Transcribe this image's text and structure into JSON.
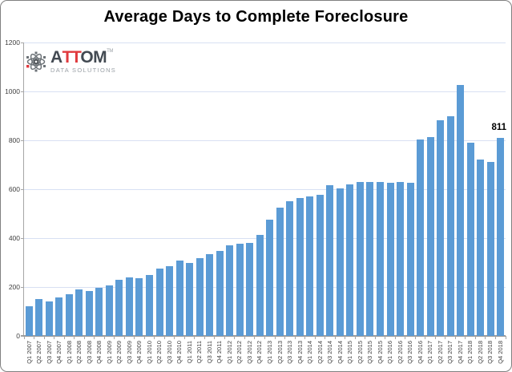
{
  "logo": {
    "word_a": "A",
    "word_tt": "TT",
    "word_om": "OM",
    "tm": "TM",
    "subtitle": "DATA SOLUTIONS"
  },
  "chart_data": {
    "type": "bar",
    "title": "Average Days to Complete Foreclosure",
    "xlabel": "",
    "ylabel": "",
    "ylim": [
      0,
      1200
    ],
    "yticks": [
      0,
      200,
      400,
      600,
      800,
      1000,
      1200
    ],
    "grid": true,
    "legend": "none",
    "bar_color": "#5B9BD5",
    "gridline_color": "#d8e0f3",
    "axis_color": "#a6a6a6",
    "categories": [
      "Q1 2007",
      "Q2 2007",
      "Q3 2007",
      "Q4 2007",
      "Q1 2008",
      "Q2 2008",
      "Q3 2008",
      "Q4 2008",
      "Q1 2009",
      "Q2 2009",
      "Q3 2009",
      "Q4 2009",
      "Q1 2010",
      "Q2 2010",
      "Q3 2010",
      "Q4 2010",
      "Q1 2011",
      "Q2 2011",
      "Q3 2011",
      "Q4 2011",
      "Q1 2012",
      "Q2 2012",
      "Q3 2012",
      "Q4 2012",
      "Q1 2013",
      "Q2 2013",
      "Q3 2013",
      "Q4 2013",
      "Q1 2014",
      "Q2 2014",
      "Q3 2014",
      "Q4 2014",
      "Q1 2015",
      "Q2 2015",
      "Q3 2015",
      "Q4 2015",
      "Q1 2016",
      "Q2 2016",
      "Q3 2016",
      "Q4 2016",
      "Q1 2017",
      "Q2 2017",
      "Q3 2017",
      "Q4 2017",
      "Q1 2018",
      "Q2 2018",
      "Q3 2018",
      "Q4 2018"
    ],
    "values": [
      120,
      152,
      141,
      159,
      172,
      190,
      183,
      196,
      208,
      230,
      238,
      236,
      249,
      277,
      285,
      308,
      299,
      318,
      336,
      348,
      370,
      378,
      382,
      414,
      477,
      526,
      551,
      564,
      572,
      577,
      615,
      604,
      620,
      629,
      630,
      629,
      625,
      631,
      625,
      803,
      814,
      883,
      899,
      1027,
      791,
      720,
      713,
      811
    ],
    "annotated_point": {
      "category": "Q4 2018",
      "label": "811"
    }
  }
}
